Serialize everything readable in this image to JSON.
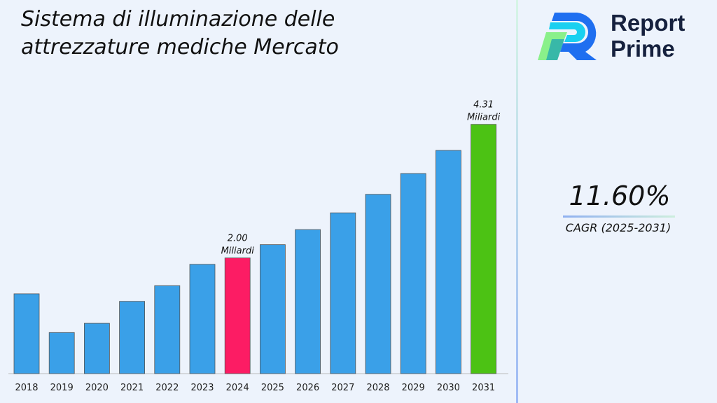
{
  "chart_data": {
    "type": "bar",
    "title": "Sistema di illuminazione delle attrezzature mediche Mercato",
    "categories": [
      "2018",
      "2019",
      "2020",
      "2021",
      "2022",
      "2023",
      "2024",
      "2025",
      "2026",
      "2027",
      "2028",
      "2029",
      "2030",
      "2031"
    ],
    "values": [
      1.38,
      0.71,
      0.87,
      1.25,
      1.52,
      1.89,
      2.0,
      2.23,
      2.49,
      2.78,
      3.1,
      3.46,
      3.86,
      4.31
    ],
    "ylim": [
      0,
      4.5
    ],
    "xlabel": "",
    "ylabel": "",
    "grid": false,
    "colors": {
      "default": "#3aa0e8",
      "highlight_2024": "#fc1c64",
      "highlight_2031": "#4cc214",
      "edge": "#555555"
    },
    "highlight_colors": {
      "2024": "#fc1c64",
      "2031": "#4cc214"
    },
    "annotations": [
      {
        "category": "2024",
        "value_text": "2.00",
        "unit_text": "Miliardi"
      },
      {
        "category": "2031",
        "value_text": "4.31",
        "unit_text": "Miliardi"
      }
    ]
  },
  "logo": {
    "line1": "Report",
    "line2": "Prime"
  },
  "cagr": {
    "value": "11.60%",
    "label": "CAGR (2025-2031)"
  }
}
